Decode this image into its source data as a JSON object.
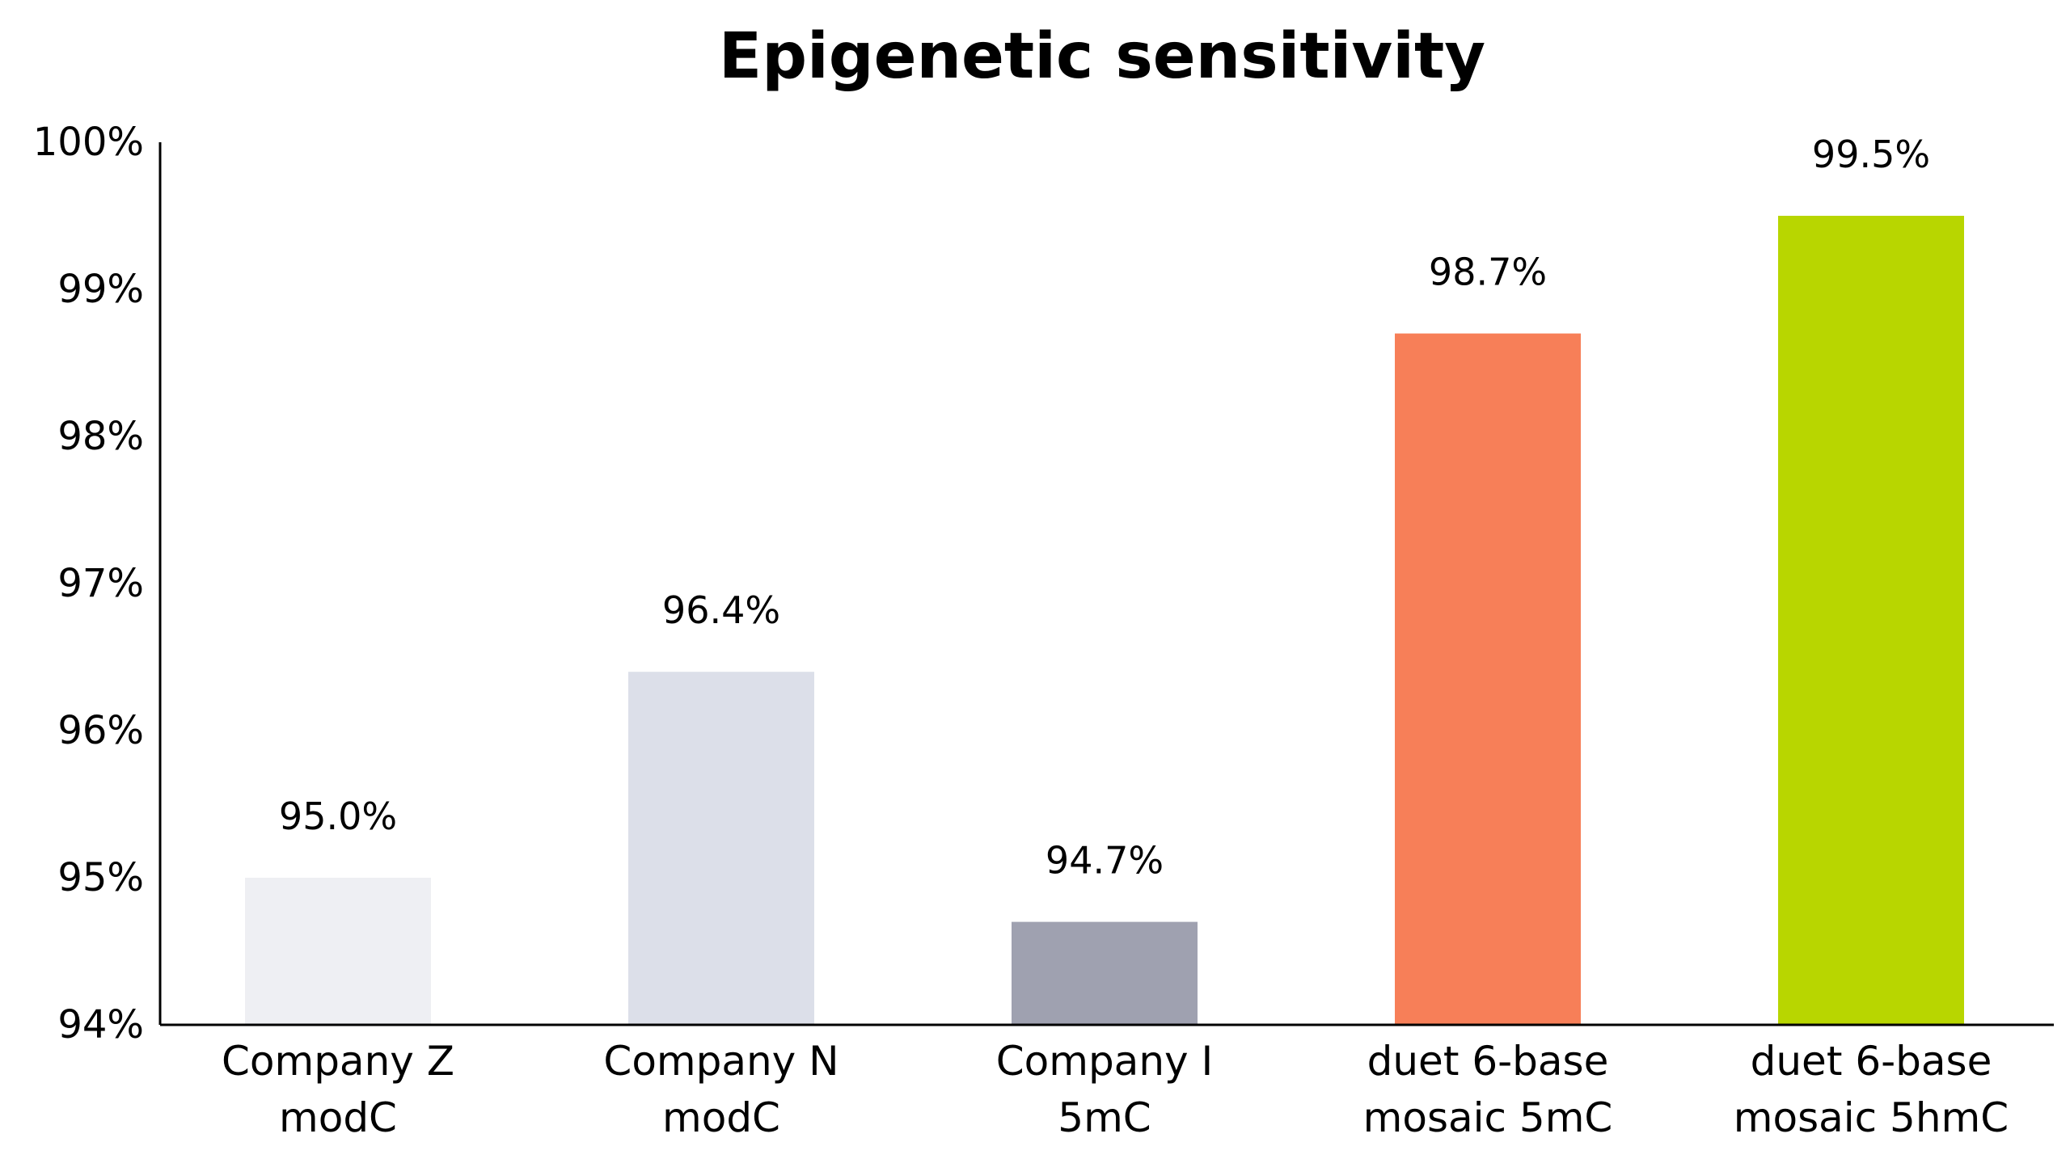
{
  "chart_data": {
    "type": "bar",
    "title": "Epigenetic sensitivity",
    "xlabel": "",
    "ylabel": "",
    "ylim": [
      94,
      100
    ],
    "yticks": [
      94,
      95,
      96,
      97,
      98,
      99,
      100
    ],
    "ytick_labels": [
      "94%",
      "95%",
      "96%",
      "97%",
      "98%",
      "99%",
      "100%"
    ],
    "categories": [
      [
        "Company Z",
        "modC"
      ],
      [
        "Company N",
        "modC"
      ],
      [
        "Company I",
        "5mC"
      ],
      [
        "duet 6-base",
        "mosaic 5mC"
      ],
      [
        "duet 6-base",
        "mosaic 5hmC"
      ]
    ],
    "values": [
      95.0,
      96.4,
      94.7,
      98.7,
      99.5
    ],
    "data_labels": [
      "95.0%",
      "96.4%",
      "94.7%",
      "98.7%",
      "99.5%"
    ],
    "colors": [
      "#eeeff3",
      "#dcdfe9",
      "#9fa1b0",
      "#f77f58",
      "#b8d600"
    ],
    "grid": false,
    "legend": "none"
  }
}
